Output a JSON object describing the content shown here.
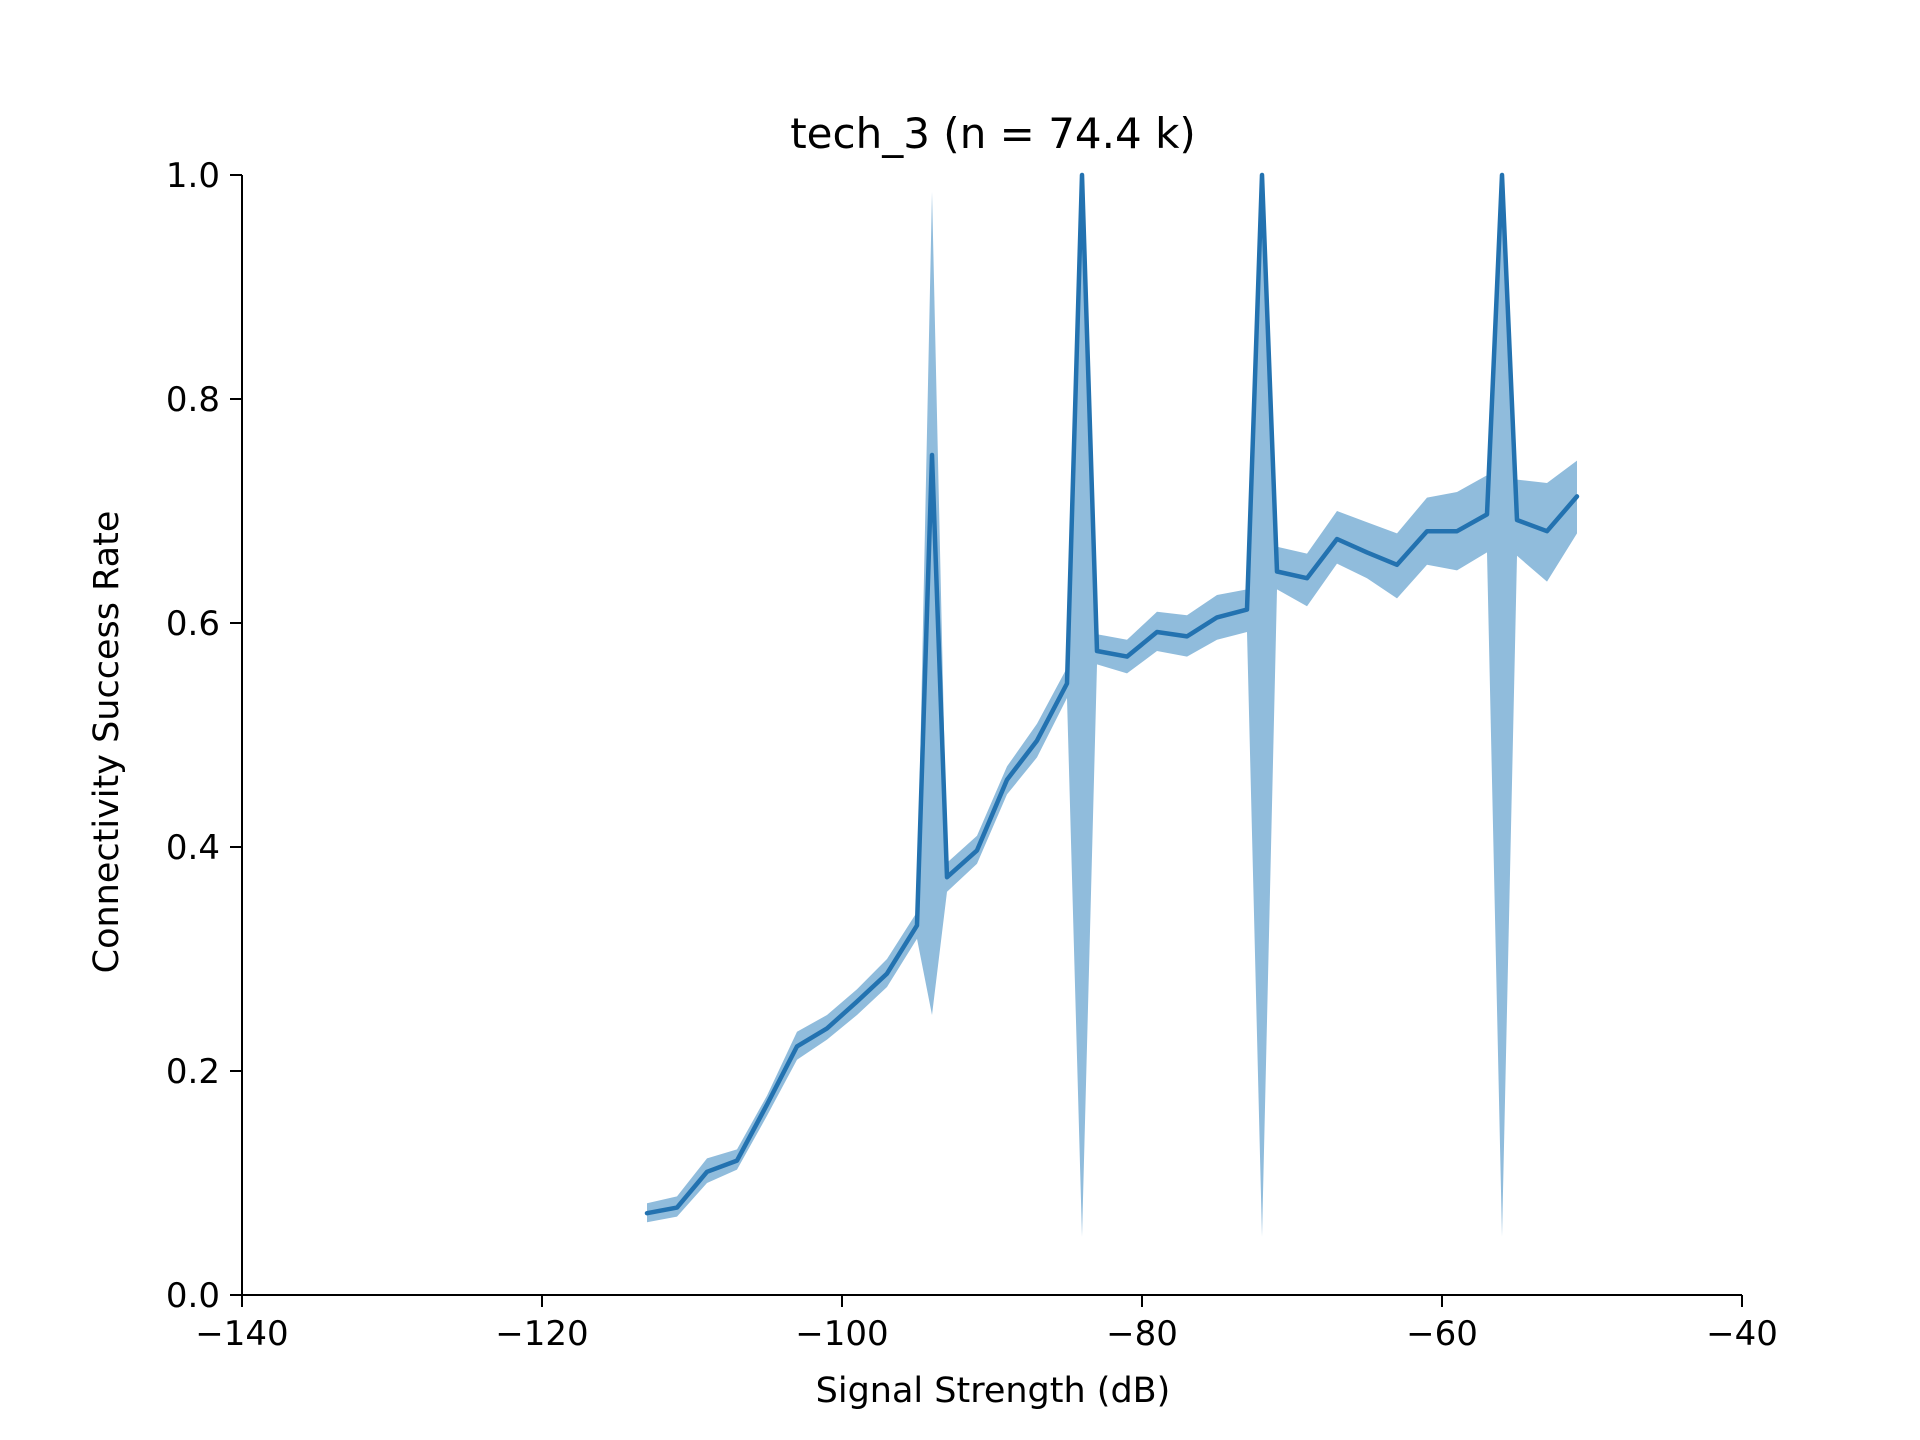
{
  "chart_data": {
    "type": "line",
    "title": "tech_3 (n = 74.4 k)",
    "xlabel": "Signal Strength (dB)",
    "ylabel": "Connectivity Success Rate",
    "xlim": [
      -140,
      -40
    ],
    "ylim": [
      0,
      1
    ],
    "xticks": [
      -140,
      -120,
      -100,
      -80,
      -60,
      -40
    ],
    "xtick_labels": [
      "−140",
      "−120",
      "−100",
      "−80",
      "−60",
      "−40"
    ],
    "yticks": [
      0,
      0.2,
      0.4,
      0.6,
      0.8,
      1.0
    ],
    "ytick_labels": [
      "0.0",
      "0.2",
      "0.4",
      "0.6",
      "0.8",
      "1.0"
    ],
    "grid": false,
    "colors": {
      "line": "#2372b0",
      "band": "#90bcdc"
    },
    "series": [
      {
        "x": [
          -113,
          -111,
          -109,
          -107,
          -105,
          -103,
          -101,
          -99,
          -97,
          -95,
          -94,
          -93,
          -91,
          -89,
          -87,
          -85,
          -84,
          -83,
          -81,
          -79,
          -77,
          -75,
          -73,
          -72,
          -71,
          -69,
          -67,
          -65,
          -63,
          -61,
          -59,
          -57,
          -56,
          -55,
          -53,
          -51
        ],
        "y": [
          0.073,
          0.078,
          0.11,
          0.12,
          0.17,
          0.222,
          0.238,
          0.262,
          0.287,
          0.33,
          0.75,
          0.373,
          0.397,
          0.46,
          0.495,
          0.546,
          1.0,
          0.575,
          0.57,
          0.592,
          0.588,
          0.605,
          0.612,
          1.0,
          0.646,
          0.64,
          0.675,
          0.663,
          0.652,
          0.682,
          0.682,
          0.697,
          1.0,
          0.692,
          0.682,
          0.713
        ],
        "lower": [
          0.065,
          0.07,
          0.1,
          0.112,
          0.16,
          0.21,
          0.228,
          0.25,
          0.275,
          0.318,
          0.25,
          0.36,
          0.385,
          0.447,
          0.48,
          0.533,
          0.052,
          0.563,
          0.555,
          0.575,
          0.57,
          0.585,
          0.592,
          0.052,
          0.63,
          0.615,
          0.653,
          0.64,
          0.622,
          0.652,
          0.647,
          0.663,
          0.052,
          0.66,
          0.637,
          0.68
        ],
        "upper": [
          0.082,
          0.088,
          0.122,
          0.13,
          0.178,
          0.235,
          0.25,
          0.273,
          0.3,
          0.342,
          0.985,
          0.386,
          0.41,
          0.472,
          0.51,
          0.56,
          1.0,
          0.59,
          0.585,
          0.61,
          0.607,
          0.625,
          0.63,
          1.0,
          0.668,
          0.662,
          0.7,
          0.69,
          0.68,
          0.712,
          0.717,
          0.732,
          1.0,
          0.728,
          0.725,
          0.745
        ]
      }
    ]
  }
}
